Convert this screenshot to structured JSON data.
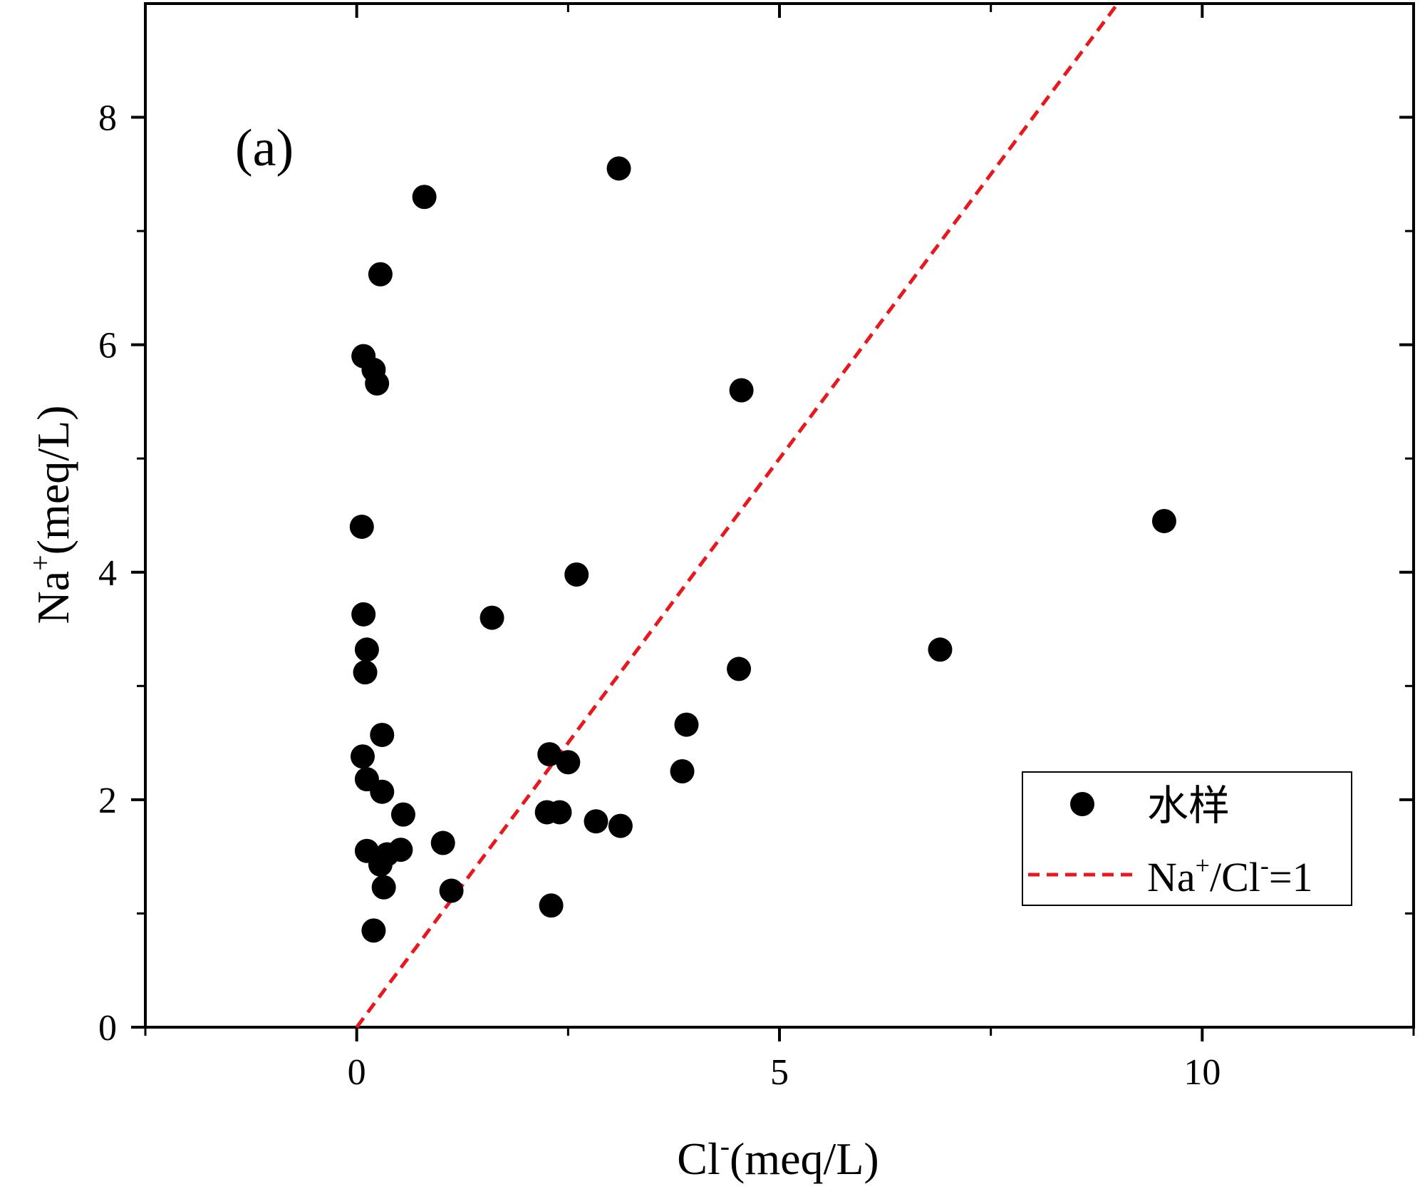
{
  "chart_data": {
    "type": "scatter",
    "panel_label": "(a)",
    "xlabel": {
      "base": "Cl",
      "sup": "-",
      "unit": "(meq/L)"
    },
    "ylabel": {
      "base": "Na",
      "sup": "+",
      "unit": "(meq/L)"
    },
    "xlim": [
      -2.5,
      12.5
    ],
    "ylim": [
      0,
      9
    ],
    "xticks": [
      0,
      5,
      10
    ],
    "yticks": [
      0,
      2,
      4,
      6,
      8
    ],
    "series": [
      {
        "name": "水样",
        "kind": "scatter",
        "color": "#000000",
        "points": [
          [
            0.8,
            7.3
          ],
          [
            3.1,
            7.55
          ],
          [
            0.28,
            6.62
          ],
          [
            0.08,
            5.9
          ],
          [
            0.2,
            5.78
          ],
          [
            0.24,
            5.66
          ],
          [
            4.55,
            5.6
          ],
          [
            0.06,
            4.4
          ],
          [
            9.55,
            4.45
          ],
          [
            2.6,
            3.98
          ],
          [
            0.08,
            3.63
          ],
          [
            1.6,
            3.6
          ],
          [
            0.12,
            3.32
          ],
          [
            6.9,
            3.32
          ],
          [
            0.1,
            3.12
          ],
          [
            4.52,
            3.15
          ],
          [
            3.9,
            2.66
          ],
          [
            0.3,
            2.57
          ],
          [
            0.07,
            2.38
          ],
          [
            2.28,
            2.4
          ],
          [
            2.5,
            2.33
          ],
          [
            3.85,
            2.25
          ],
          [
            0.12,
            2.18
          ],
          [
            0.3,
            2.07
          ],
          [
            0.55,
            1.87
          ],
          [
            2.25,
            1.89
          ],
          [
            2.4,
            1.89
          ],
          [
            2.83,
            1.81
          ],
          [
            3.12,
            1.77
          ],
          [
            1.02,
            1.62
          ],
          [
            0.12,
            1.55
          ],
          [
            0.52,
            1.56
          ],
          [
            0.36,
            1.52
          ],
          [
            0.28,
            1.43
          ],
          [
            0.32,
            1.23
          ],
          [
            1.12,
            1.2
          ],
          [
            2.3,
            1.07
          ],
          [
            0.2,
            0.85
          ]
        ]
      },
      {
        "name": "Na+/Cl-=1",
        "label": {
          "base": "Na",
          "sup1": "+",
          "mid": "/Cl",
          "sup2": "-",
          "tail": "=1"
        },
        "kind": "line",
        "style": "dashed",
        "color": "#e8191e",
        "x": [
          0,
          9.0
        ],
        "y": [
          0,
          9.0
        ]
      }
    ],
    "legend": {
      "position": "bottom-right"
    }
  }
}
